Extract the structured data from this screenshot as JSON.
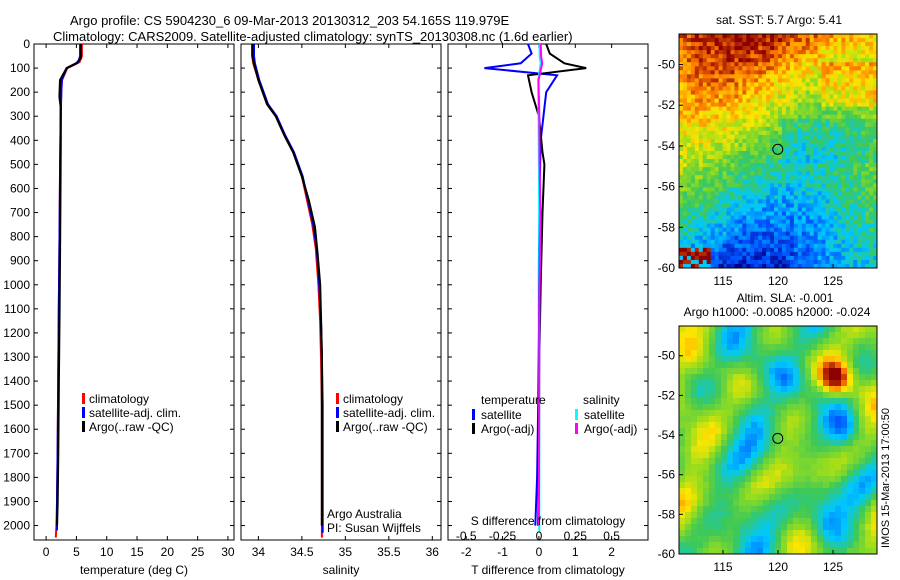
{
  "header": {
    "line1": "Argo profile: CS 5904230_6 09-Mar-2013 20130312_203 54.165S 119.979E",
    "line2": "Climatology: CARS2009. Satellite-adjusted climatology: synTS_20130308.nc (1.6d earlier)"
  },
  "colors": {
    "climatology": "#ff0000",
    "satellite": "#0000ff",
    "argo": "#000000",
    "sal_satellite": "#00ffff",
    "sal_argo": "#ff00ff"
  },
  "chart_data": [
    {
      "type": "line",
      "id": "temperature",
      "xlabel": "temperature (deg C)",
      "xlim": [
        -2,
        31
      ],
      "ylim": [
        0,
        2060
      ],
      "y_reversed": true,
      "xticks": [
        0,
        5,
        10,
        15,
        20,
        25,
        30
      ],
      "yticks": [
        0,
        100,
        200,
        300,
        400,
        500,
        600,
        700,
        800,
        900,
        1000,
        1100,
        1200,
        1300,
        1400,
        1500,
        1600,
        1700,
        1800,
        1900,
        2000
      ],
      "legend": [
        "climatology",
        "satellite-adj. clim.",
        "Argo(..raw -QC)"
      ],
      "series": [
        {
          "name": "climatology",
          "color": "#ff0000",
          "x": [
            5.9,
            5.9,
            5.5,
            3.5,
            2.6,
            2.5,
            2.4,
            2.3,
            2.2,
            2.1,
            2.0,
            1.9,
            1.8,
            1.7,
            1.6
          ],
          "y": [
            0,
            50,
            75,
            100,
            150,
            200,
            300,
            500,
            800,
            1100,
            1400,
            1700,
            1900,
            2000,
            2050
          ]
        },
        {
          "name": "satellite-adj. clim.",
          "color": "#0000ff",
          "x": [
            5.6,
            5.6,
            5.3,
            3.4,
            2.6,
            2.5,
            2.4,
            2.3,
            2.2,
            2.1,
            2.0,
            1.9,
            1.8,
            1.8
          ],
          "y": [
            0,
            50,
            75,
            100,
            150,
            200,
            300,
            500,
            800,
            1100,
            1400,
            1700,
            1900,
            2020
          ]
        },
        {
          "name": "Argo(..raw -QC)",
          "color": "#000000",
          "x": [
            5.7,
            5.7,
            5.0,
            3.4,
            2.3,
            2.2,
            2.4,
            2.4,
            2.3,
            2.2,
            2.1,
            2.0,
            1.9,
            1.8
          ],
          "y": [
            0,
            60,
            80,
            100,
            150,
            220,
            260,
            400,
            800,
            1100,
            1400,
            1700,
            1900,
            2000
          ]
        }
      ]
    },
    {
      "type": "line",
      "id": "salinity",
      "xlabel": "salinity",
      "xlim": [
        33.8,
        36.1
      ],
      "ylim": [
        0,
        2060
      ],
      "y_reversed": true,
      "xticks": [
        34,
        34.5,
        35,
        35.5,
        36
      ],
      "legend": [
        "climatology",
        "satellite-adj. clim.",
        "Argo(..raw -QC)"
      ],
      "annotation": [
        "Argo Australia",
        "PI: Susan Wijffels"
      ],
      "series": [
        {
          "name": "climatology",
          "color": "#ff0000",
          "x": [
            33.93,
            33.93,
            33.94,
            34.0,
            34.1,
            34.2,
            34.3,
            34.4,
            34.5,
            34.56,
            34.62,
            34.66,
            34.69,
            34.71,
            34.72,
            34.73,
            34.73,
            34.73
          ],
          "y": [
            0,
            50,
            80,
            150,
            250,
            300,
            380,
            450,
            550,
            650,
            750,
            850,
            1000,
            1150,
            1300,
            1500,
            1800,
            2050
          ]
        },
        {
          "name": "satellite-adj. clim.",
          "color": "#0000ff",
          "x": [
            33.95,
            33.95,
            33.96,
            34.01,
            34.11,
            34.21,
            34.31,
            34.41,
            34.51,
            34.57,
            34.63,
            34.67,
            34.7,
            34.72,
            34.73,
            34.74,
            34.74,
            34.74
          ],
          "y": [
            0,
            50,
            80,
            150,
            250,
            300,
            380,
            450,
            550,
            650,
            750,
            850,
            1000,
            1150,
            1300,
            1500,
            1800,
            2030
          ]
        },
        {
          "name": "Argo(..raw -QC)",
          "color": "#000000",
          "x": [
            33.93,
            33.93,
            33.95,
            34.0,
            34.1,
            34.2,
            34.3,
            34.4,
            34.5,
            34.58,
            34.65,
            34.68,
            34.71,
            34.72,
            34.73,
            34.73
          ],
          "y": [
            0,
            50,
            80,
            150,
            250,
            300,
            380,
            450,
            550,
            650,
            760,
            870,
            1000,
            1150,
            1300,
            2000
          ]
        }
      ]
    },
    {
      "type": "line",
      "id": "difference",
      "xlabel": "T difference from climatology",
      "top_axis_label": "S difference from climatology",
      "xlim": [
        -2.5,
        3
      ],
      "ylim": [
        0,
        2060
      ],
      "y_reversed": true,
      "xticks": [
        -2,
        -1,
        0,
        1,
        2
      ],
      "top_ticks": [
        -0.5,
        -0.25,
        0,
        0.25,
        0.5
      ],
      "legend_headers": [
        "temperature",
        "salinity"
      ],
      "legend": [
        "satellite",
        "Argo(-adj)",
        "satellite",
        "Argo(-adj)"
      ],
      "series": [
        {
          "name": "temperature satellite",
          "color": "#0000ff",
          "x": [
            -0.3,
            -0.2,
            -0.5,
            -1.5,
            0.5,
            0.2,
            0.05,
            0.02,
            0.0,
            0.0,
            -0.02,
            -0.05,
            -0.1
          ],
          "y": [
            0,
            40,
            80,
            100,
            130,
            200,
            400,
            600,
            900,
            1200,
            1500,
            1800,
            2000
          ]
        },
        {
          "name": "temperature Argo(-adj)",
          "color": "#000000",
          "x": [
            0.2,
            0.3,
            0.7,
            1.3,
            -0.3,
            -0.2,
            0.0,
            0.1,
            0.15,
            0.1,
            0.05,
            0.0,
            0.0,
            -0.02
          ],
          "y": [
            0,
            40,
            80,
            100,
            130,
            200,
            300,
            450,
            500,
            700,
            1000,
            1400,
            1800,
            2000
          ]
        },
        {
          "name": "salinity satellite",
          "color": "#00ffff",
          "x": [
            0.02,
            0.02,
            0.05,
            -0.02,
            -0.01,
            0.0,
            0.01,
            0.01,
            0.01,
            0.01,
            0.01
          ],
          "y": [
            0,
            50,
            80,
            150,
            300,
            500,
            800,
            1100,
            1400,
            1700,
            2030
          ]
        },
        {
          "name": "salinity Argo(-adj)",
          "color": "#ff00ff",
          "x": [
            0.05,
            0.06,
            0.09,
            -0.01,
            0.01,
            0.02,
            0.04,
            0.03,
            0.01,
            0.01,
            0.0
          ],
          "y": [
            0,
            50,
            80,
            150,
            300,
            500,
            700,
            900,
            1100,
            1300,
            2000
          ]
        }
      ]
    },
    {
      "type": "heatmap",
      "id": "sst-map",
      "title": "sat. SST: 5.7 Argo: 5.41",
      "xlim": [
        111,
        129
      ],
      "ylim": [
        -60,
        -48.5
      ],
      "xticks": [
        115,
        120,
        125
      ],
      "yticks": [
        -50,
        -52,
        -54,
        -56,
        -58,
        -60
      ],
      "marker": {
        "lon": 119.979,
        "lat": -54.165
      }
    },
    {
      "type": "heatmap",
      "id": "sla-map",
      "title": [
        "Altim. SLA: -0.001",
        "Argo h1000: -0.0085 h2000: -0.024"
      ],
      "xlim": [
        111,
        129
      ],
      "ylim": [
        -60,
        -48.5
      ],
      "xticks": [
        115,
        120,
        125
      ],
      "yticks": [
        -50,
        -52,
        -54,
        -56,
        -58,
        -60
      ],
      "marker": {
        "lon": 119.979,
        "lat": -54.165
      },
      "side_label": "IMOS 15-Mar-2013 17:00:50"
    }
  ]
}
